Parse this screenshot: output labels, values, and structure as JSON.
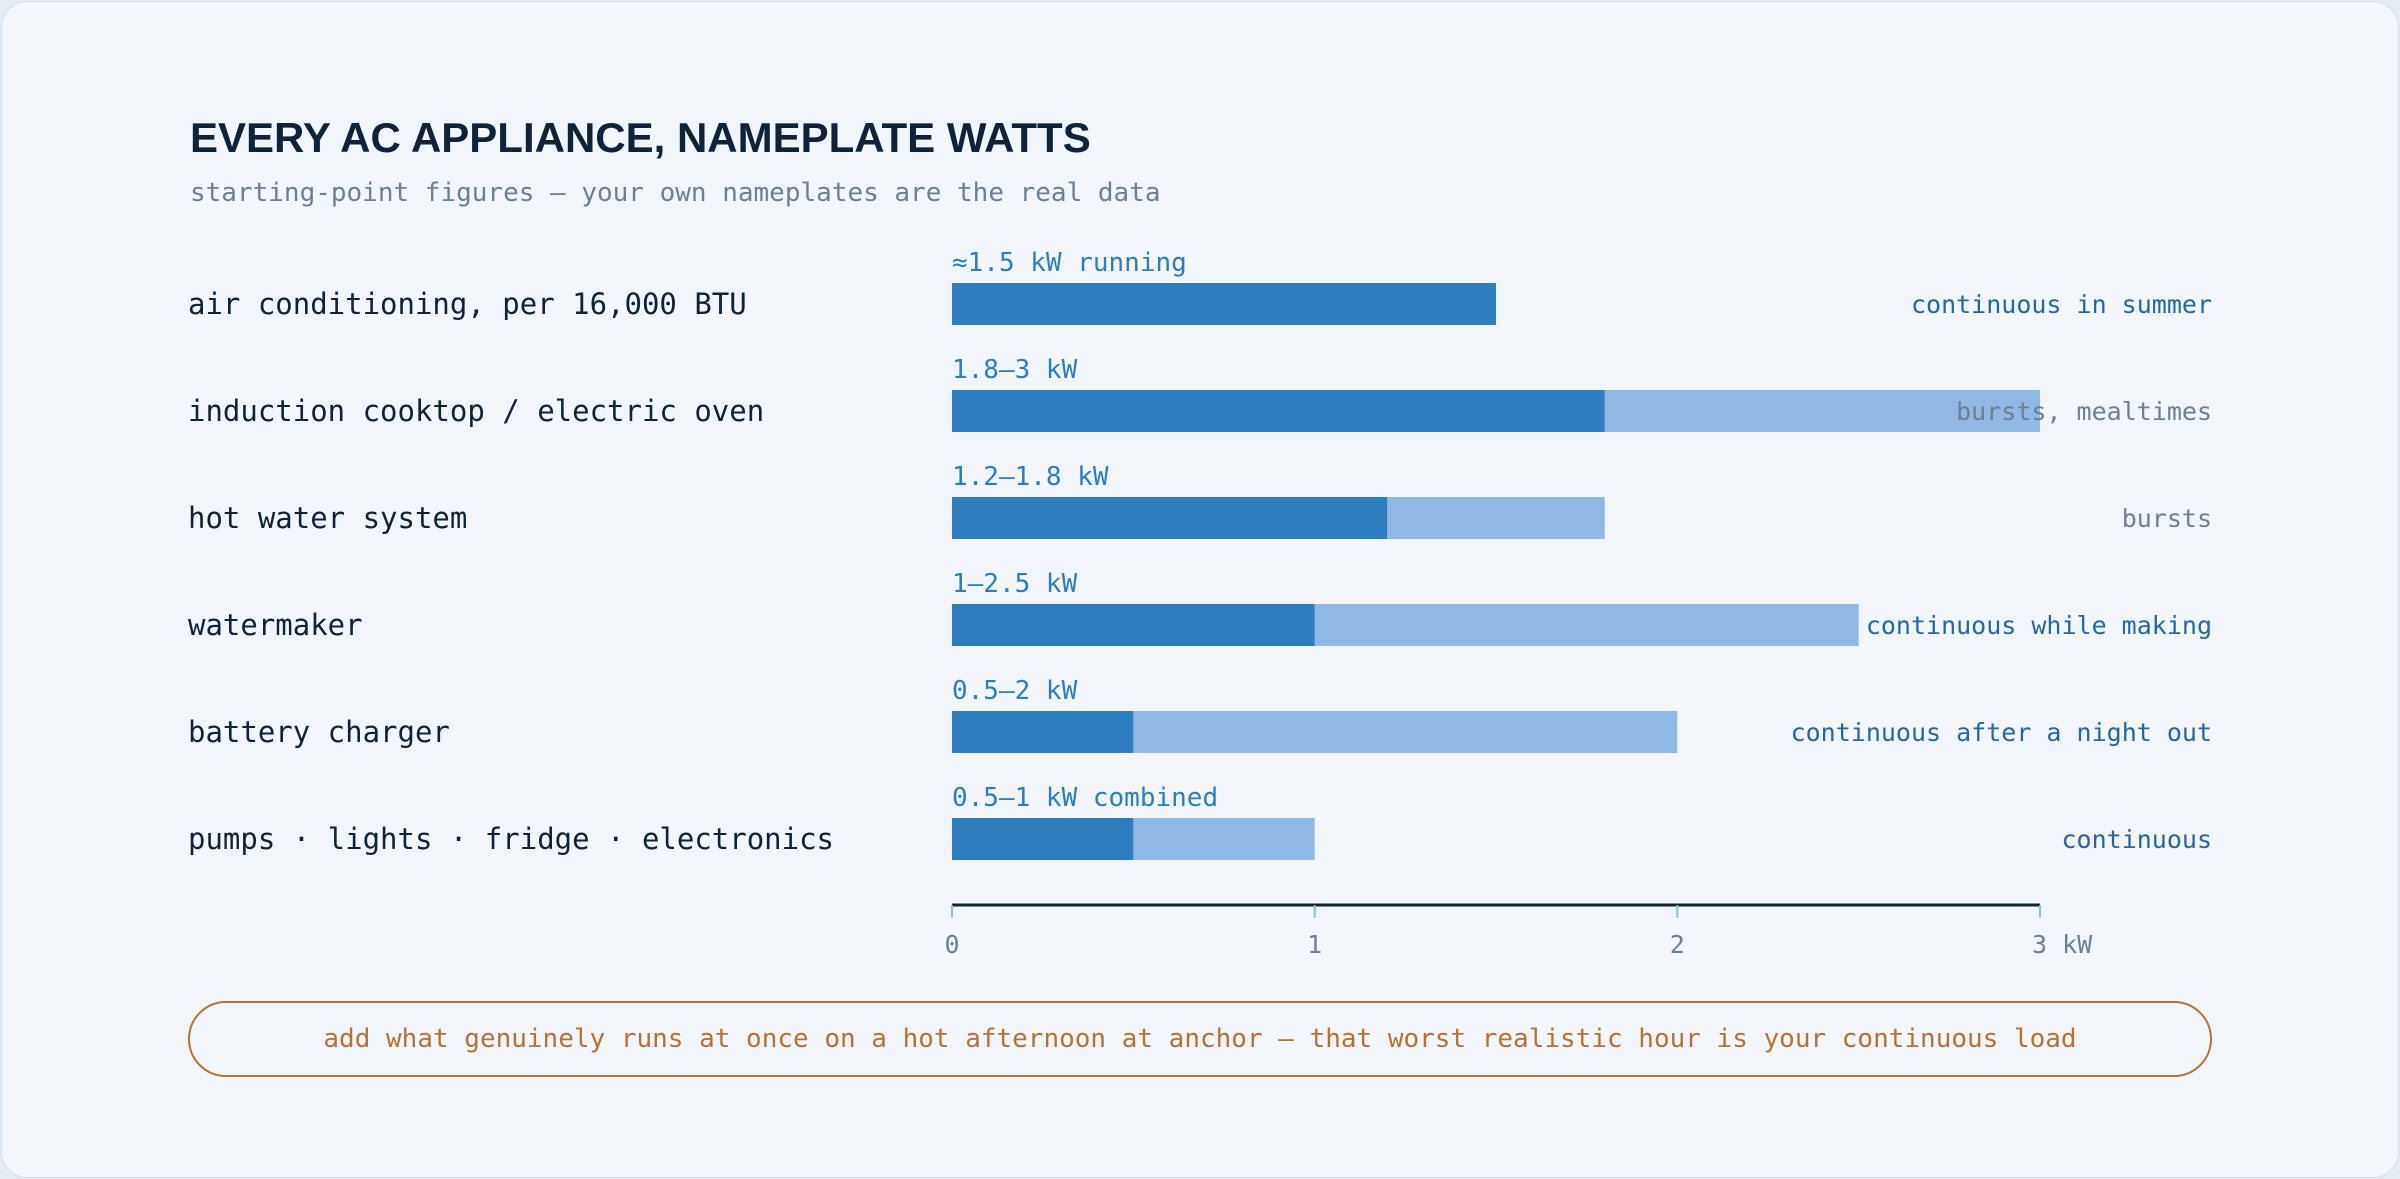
{
  "colors": {
    "bar_low": "#2e7dbf",
    "bar_high": "#8fb9e4",
    "range_label": "#2e7dbf",
    "usage_continuous": "#2566a3",
    "usage_bursts": "#6d7f92",
    "axis": "#0f2238",
    "tick": "#8fb9e4",
    "callout": "#b27337"
  },
  "chart_data": {
    "type": "bar",
    "orientation": "horizontal",
    "title": "EVERY AC APPLIANCE, NAMEPLATE WATTS",
    "subtitle": "starting-point figures — your own nameplates are the real data",
    "xlim": [
      0,
      3
    ],
    "grid": false,
    "x_ticks": [
      {
        "value": 0,
        "label": "0"
      },
      {
        "value": 1,
        "label": "1"
      },
      {
        "value": 2,
        "label": "2"
      },
      {
        "value": 3,
        "label": "3 kW"
      }
    ],
    "rows": [
      {
        "category": "air conditioning, per 16,000 BTU",
        "low": 1.5,
        "high": 1.5,
        "range_label": "≈1.5 kW running",
        "usage": "continuous in summer",
        "usage_kind": "continuous"
      },
      {
        "category": "induction cooktop / electric oven",
        "low": 1.8,
        "high": 3,
        "range_label": "1.8–3 kW",
        "usage": "bursts, mealtimes",
        "usage_kind": "bursts"
      },
      {
        "category": "hot water system",
        "low": 1.2,
        "high": 1.8,
        "range_label": "1.2–1.8 kW",
        "usage": "bursts",
        "usage_kind": "bursts"
      },
      {
        "category": "watermaker",
        "low": 1,
        "high": 2.5,
        "range_label": "1–2.5 kW",
        "usage": "continuous while making",
        "usage_kind": "continuous"
      },
      {
        "category": "battery charger",
        "low": 0.5,
        "high": 2,
        "range_label": "0.5–2 kW",
        "usage": "continuous after a night out",
        "usage_kind": "continuous"
      },
      {
        "category": "pumps · lights · fridge · electronics",
        "low": 0.5,
        "high": 1,
        "range_label": "0.5–1 kW combined",
        "usage": "continuous",
        "usage_kind": "continuous"
      }
    ]
  },
  "callout": {
    "text": "add what genuinely runs at once on a hot afternoon at anchor — that worst realistic hour is your continuous load"
  }
}
